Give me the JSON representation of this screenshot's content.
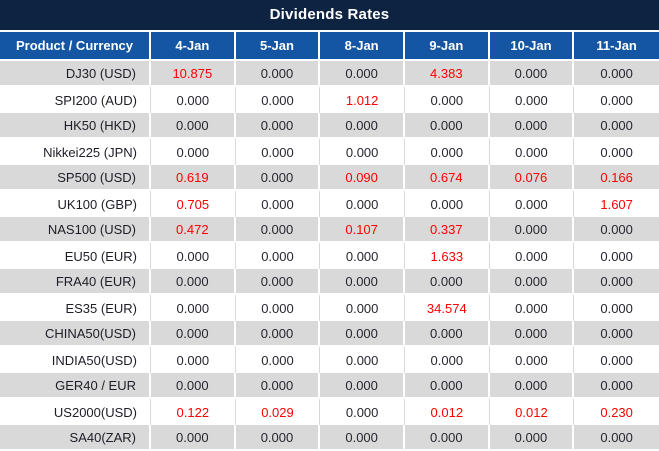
{
  "title": "Dividends Rates",
  "colors": {
    "title_bar_bg": "#0e2342",
    "header_bg": "#1456a4",
    "header_text": "#ffffff",
    "stripe_gray": "#d9d9d9",
    "value_text": "#262630",
    "highlight_red": "#ff0000"
  },
  "table": {
    "product_header": "Product / Currency",
    "date_headers": [
      "4-Jan",
      "5-Jan",
      "8-Jan",
      "9-Jan",
      "10-Jan",
      "11-Jan"
    ],
    "rows": [
      {
        "product": "DJ30 (USD)",
        "values": [
          "10.875",
          "0.000",
          "0.000",
          "4.383",
          "0.000",
          "0.000"
        ],
        "highlights": [
          1,
          0,
          0,
          1,
          0,
          0
        ]
      },
      {
        "product": "SPI200 (AUD)",
        "values": [
          "0.000",
          "0.000",
          "1.012",
          "0.000",
          "0.000",
          "0.000"
        ],
        "highlights": [
          0,
          0,
          1,
          0,
          0,
          0
        ]
      },
      {
        "product": "HK50 (HKD)",
        "values": [
          "0.000",
          "0.000",
          "0.000",
          "0.000",
          "0.000",
          "0.000"
        ],
        "highlights": [
          0,
          0,
          0,
          0,
          0,
          0
        ]
      },
      {
        "product": "Nikkei225 (JPN)",
        "values": [
          "0.000",
          "0.000",
          "0.000",
          "0.000",
          "0.000",
          "0.000"
        ],
        "highlights": [
          0,
          0,
          0,
          0,
          0,
          0
        ]
      },
      {
        "product": "SP500 (USD)",
        "values": [
          "0.619",
          "0.000",
          "0.090",
          "0.674",
          "0.076",
          "0.166"
        ],
        "highlights": [
          1,
          0,
          1,
          1,
          1,
          1
        ]
      },
      {
        "product": "UK100 (GBP)",
        "values": [
          "0.705",
          "0.000",
          "0.000",
          "0.000",
          "0.000",
          "1.607"
        ],
        "highlights": [
          1,
          0,
          0,
          0,
          0,
          1
        ]
      },
      {
        "product": "NAS100 (USD)",
        "values": [
          "0.472",
          "0.000",
          "0.107",
          "0.337",
          "0.000",
          "0.000"
        ],
        "highlights": [
          1,
          0,
          1,
          1,
          0,
          0
        ]
      },
      {
        "product": "EU50 (EUR)",
        "values": [
          "0.000",
          "0.000",
          "0.000",
          "1.633",
          "0.000",
          "0.000"
        ],
        "highlights": [
          0,
          0,
          0,
          1,
          0,
          0
        ]
      },
      {
        "product": "FRA40 (EUR)",
        "values": [
          "0.000",
          "0.000",
          "0.000",
          "0.000",
          "0.000",
          "0.000"
        ],
        "highlights": [
          0,
          0,
          0,
          0,
          0,
          0
        ]
      },
      {
        "product": "ES35 (EUR)",
        "values": [
          "0.000",
          "0.000",
          "0.000",
          "34.574",
          "0.000",
          "0.000"
        ],
        "highlights": [
          0,
          0,
          0,
          1,
          0,
          0
        ]
      },
      {
        "product": "CHINA50(USD)",
        "values": [
          "0.000",
          "0.000",
          "0.000",
          "0.000",
          "0.000",
          "0.000"
        ],
        "highlights": [
          0,
          0,
          0,
          0,
          0,
          0
        ]
      },
      {
        "product": "INDIA50(USD)",
        "values": [
          "0.000",
          "0.000",
          "0.000",
          "0.000",
          "0.000",
          "0.000"
        ],
        "highlights": [
          0,
          0,
          0,
          0,
          0,
          0
        ]
      },
      {
        "product": "GER40 / EUR",
        "values": [
          "0.000",
          "0.000",
          "0.000",
          "0.000",
          "0.000",
          "0.000"
        ],
        "highlights": [
          0,
          0,
          0,
          0,
          0,
          0
        ]
      },
      {
        "product": "US2000(USD)",
        "values": [
          "0.122",
          "0.029",
          "0.000",
          "0.012",
          "0.012",
          "0.230"
        ],
        "highlights": [
          1,
          1,
          0,
          1,
          1,
          1
        ]
      },
      {
        "product": "SA40(ZAR)",
        "values": [
          "0.000",
          "0.000",
          "0.000",
          "0.000",
          "0.000",
          "0.000"
        ],
        "highlights": [
          0,
          0,
          0,
          0,
          0,
          0
        ]
      }
    ]
  }
}
